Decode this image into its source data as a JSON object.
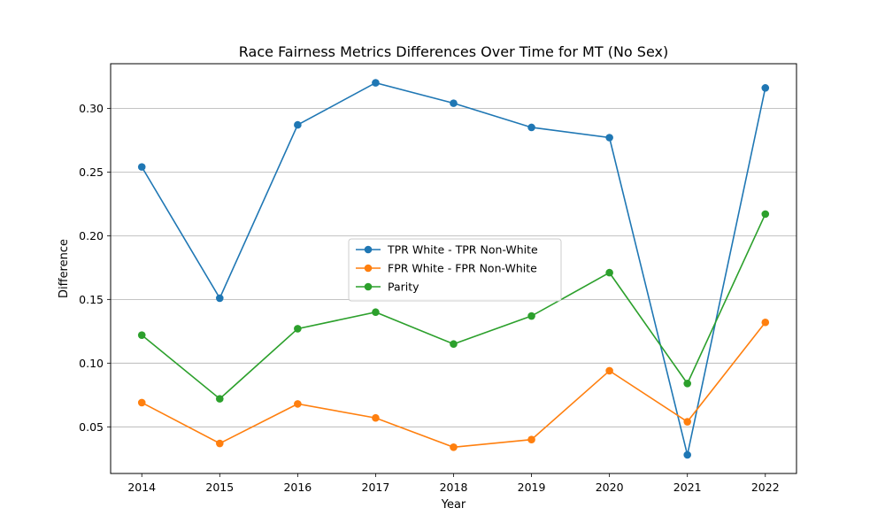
{
  "chart_data": {
    "type": "line",
    "title": "Race Fairness Metrics Differences Over Time for MT (No Sex)",
    "xlabel": "Year",
    "ylabel": "Difference",
    "x": [
      2014,
      2015,
      2016,
      2017,
      2018,
      2019,
      2020,
      2021,
      2022
    ],
    "x_tick_labels": [
      "2014",
      "2015",
      "2016",
      "2017",
      "2018",
      "2019",
      "2020",
      "2021",
      "2022"
    ],
    "ylim": [
      0.0134,
      0.335
    ],
    "y_ticks": [
      0.05,
      0.1,
      0.15,
      0.2,
      0.25,
      0.3
    ],
    "y_tick_labels": [
      "0.05",
      "0.10",
      "0.15",
      "0.20",
      "0.25",
      "0.30"
    ],
    "grid": "horizontal",
    "legend_placement": "center",
    "series": [
      {
        "name": "TPR White - TPR Non-White",
        "color": "#1f77b4",
        "values": [
          0.254,
          0.151,
          0.287,
          0.32,
          0.304,
          0.285,
          0.277,
          0.028,
          0.316
        ]
      },
      {
        "name": "FPR White - FPR Non-White",
        "color": "#ff7f0e",
        "values": [
          0.069,
          0.037,
          0.068,
          0.057,
          0.034,
          0.04,
          0.094,
          0.054,
          0.132
        ]
      },
      {
        "name": "Parity",
        "color": "#2ca02c",
        "values": [
          0.122,
          0.072,
          0.127,
          0.14,
          0.115,
          0.137,
          0.171,
          0.084,
          0.217
        ]
      }
    ]
  }
}
